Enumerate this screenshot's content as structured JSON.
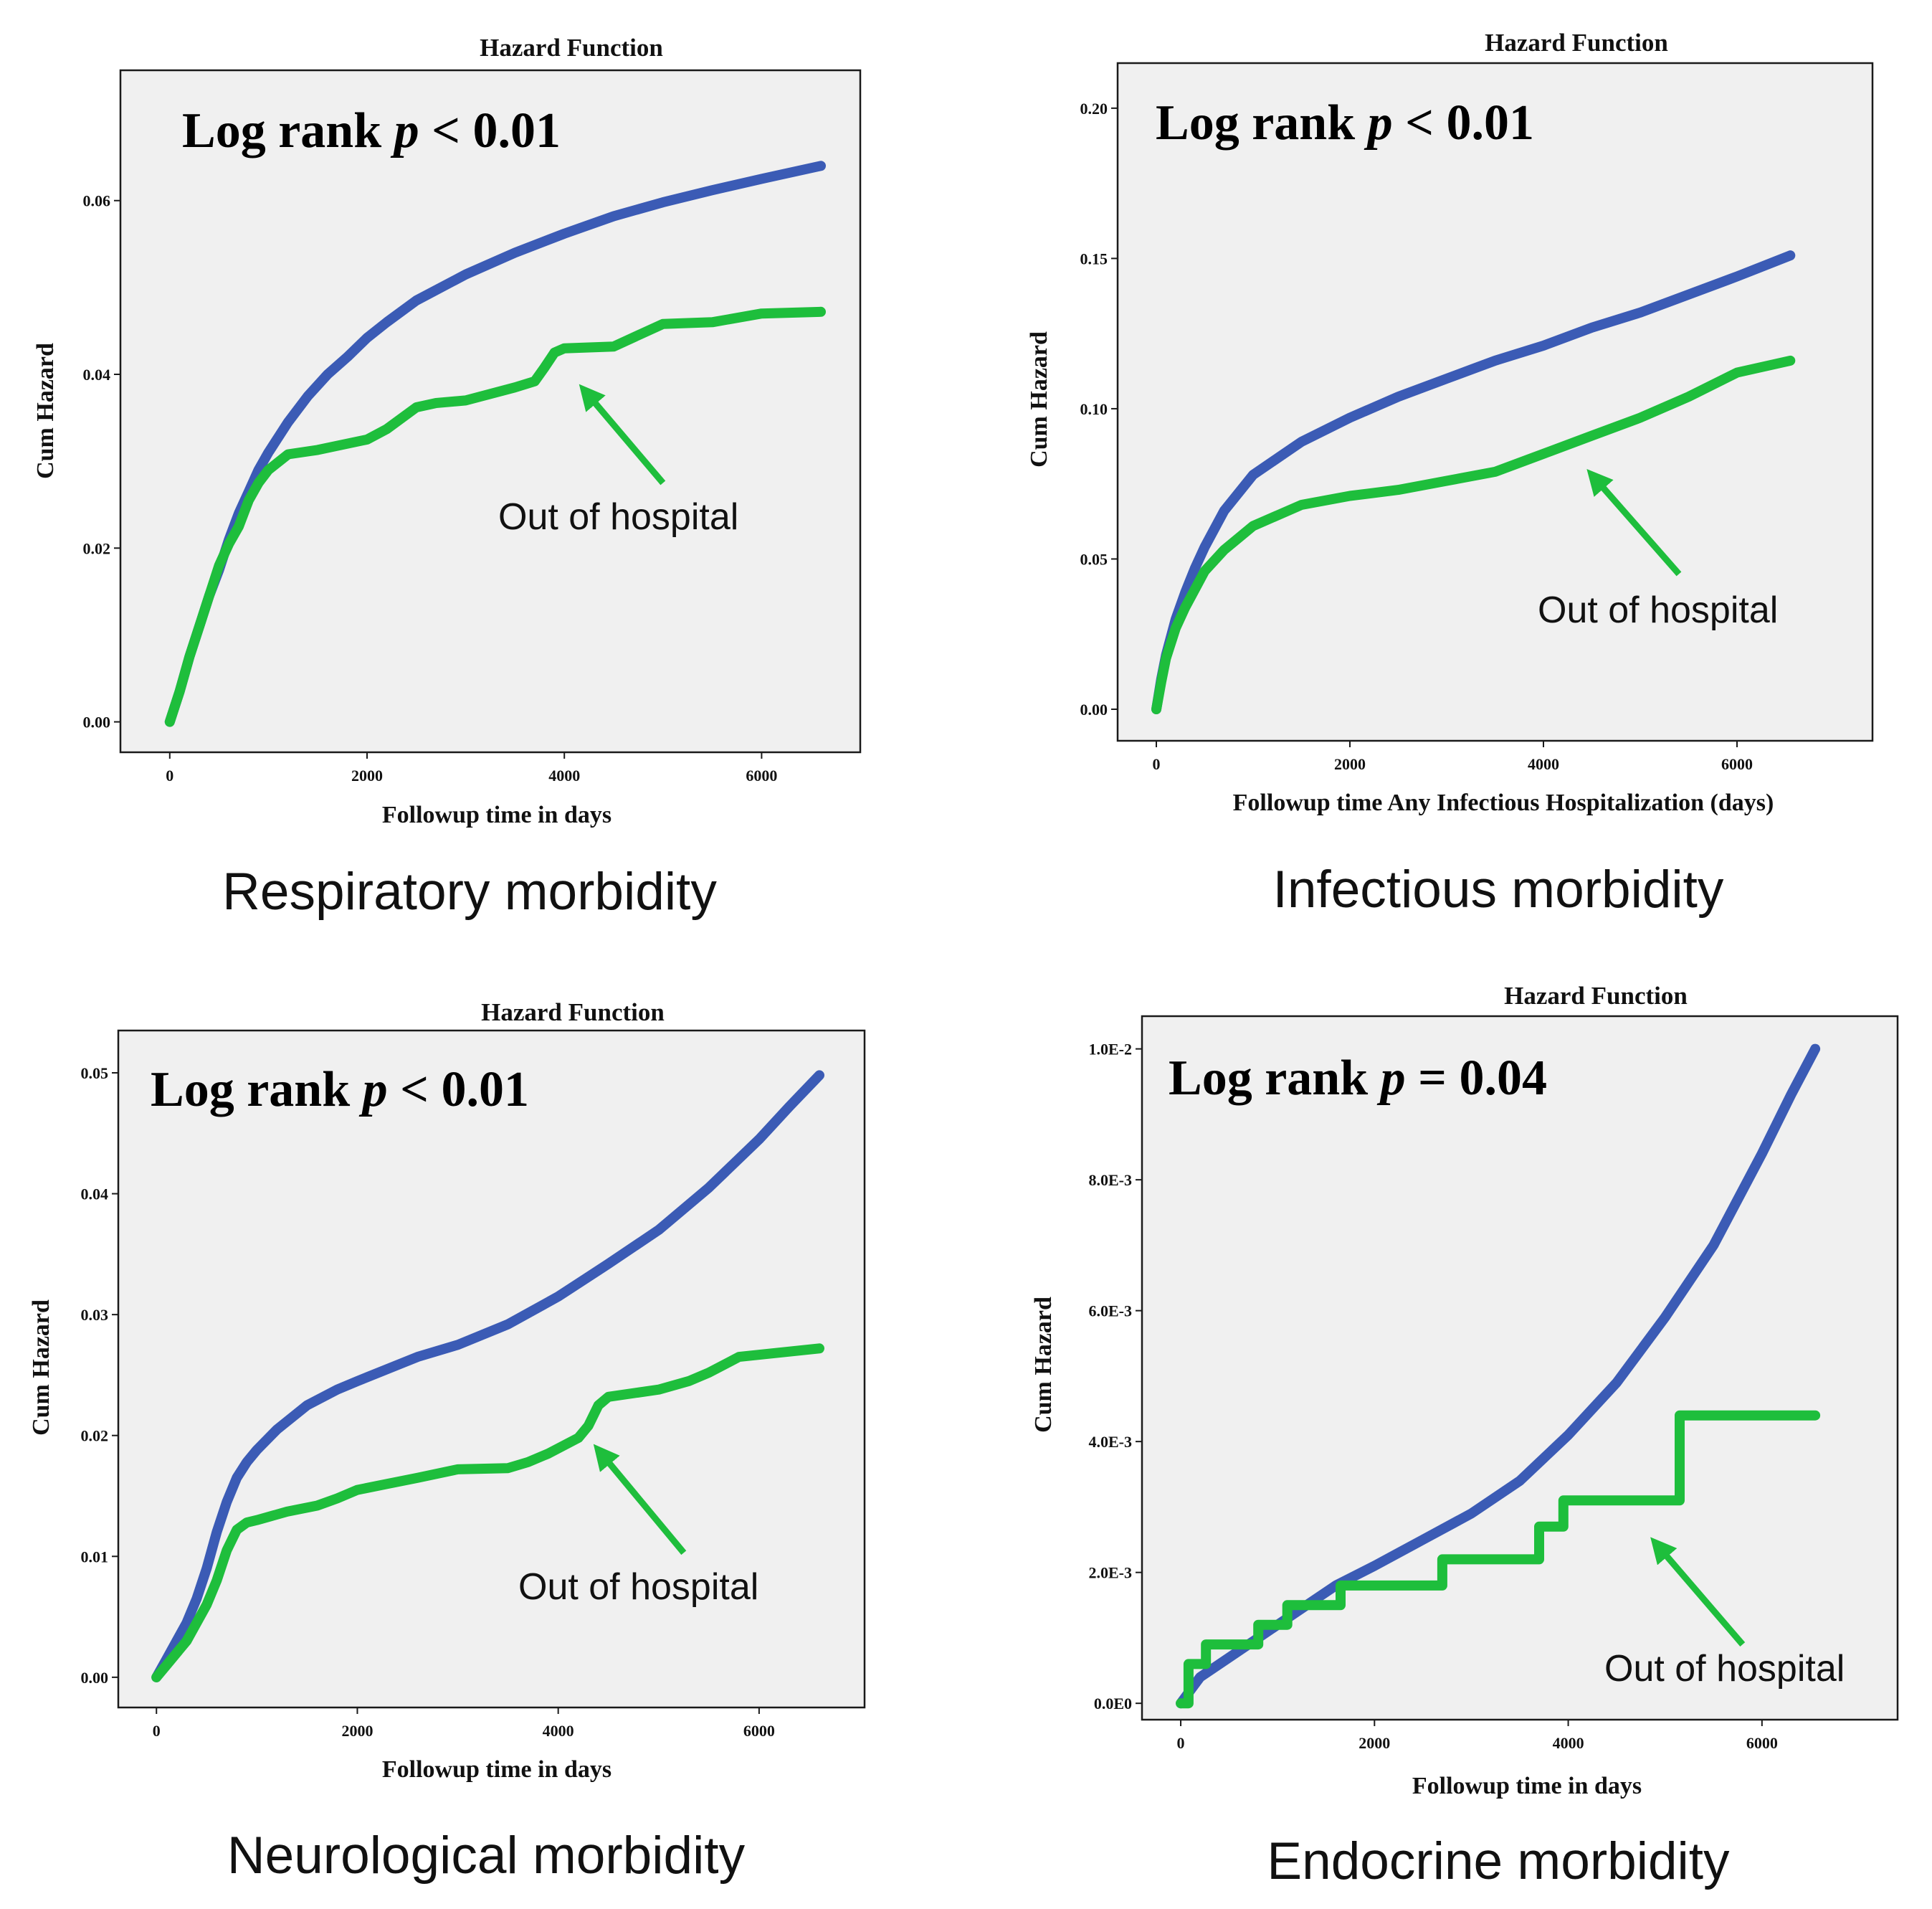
{
  "colors": {
    "background": "#ffffff",
    "plot_background": "#f0f0f0",
    "frame": "#1a1a1a",
    "blue_series": "#3b5bb5",
    "green_series": "#1ebe3c",
    "arrow": "#1ebe3c"
  },
  "chart_data": [
    {
      "type": "line",
      "title": "Hazard Function",
      "xlabel": "Followup time in days",
      "ylabel": "Cum Hazard",
      "xlim": [
        -500,
        7000
      ],
      "ylim": [
        -0.0035,
        0.075
      ],
      "x_ticks": [
        0,
        2000,
        4000,
        6000
      ],
      "x_tick_labels": [
        "0",
        "2000",
        "4000",
        "6000"
      ],
      "y_ticks": [
        0.0,
        0.02,
        0.04,
        0.06
      ],
      "y_tick_labels": [
        "0.00",
        "0.02",
        "0.04",
        "0.06"
      ],
      "log_rank": {
        "prefix": "Log rank ",
        "p": "p",
        "rest": " < 0.01"
      },
      "annotation": {
        "text": "Out of hospital",
        "target_x": 4200,
        "target_y": 0.0382,
        "tail_x": 5000,
        "tail_y": 0.0275
      },
      "caption": "Respiratory morbidity",
      "series": [
        {
          "name": "blue",
          "color": "#3b5bb5",
          "x": [
            0,
            100,
            200,
            300,
            400,
            500,
            600,
            700,
            800,
            900,
            1000,
            1200,
            1400,
            1600,
            1800,
            2000,
            2200,
            2500,
            3000,
            3500,
            4000,
            4500,
            5000,
            5500,
            6000,
            6600
          ],
          "y": [
            0,
            0.0035,
            0.0075,
            0.011,
            0.0145,
            0.0175,
            0.021,
            0.024,
            0.0265,
            0.029,
            0.031,
            0.0345,
            0.0375,
            0.04,
            0.042,
            0.0442,
            0.046,
            0.0485,
            0.0515,
            0.054,
            0.0562,
            0.0582,
            0.0598,
            0.0612,
            0.0625,
            0.064
          ]
        },
        {
          "name": "green",
          "color": "#1ebe3c",
          "x": [
            0,
            100,
            200,
            300,
            400,
            500,
            600,
            700,
            800,
            900,
            1000,
            1200,
            1500,
            2000,
            2200,
            2500,
            2700,
            3000,
            3500,
            3700,
            3800,
            3900,
            4000,
            4500,
            5000,
            5500,
            6000,
            6600
          ],
          "y": [
            0,
            0.0035,
            0.0075,
            0.011,
            0.0145,
            0.018,
            0.0205,
            0.0225,
            0.0255,
            0.0275,
            0.029,
            0.0308,
            0.0313,
            0.0325,
            0.0337,
            0.0362,
            0.0367,
            0.037,
            0.0385,
            0.0392,
            0.0408,
            0.0425,
            0.043,
            0.0432,
            0.0458,
            0.046,
            0.047,
            0.0472
          ]
        }
      ]
    },
    {
      "type": "line",
      "title": "Hazard Function",
      "xlabel": "Followup time Any Infectious Hospitalization (days)",
      "ylabel": "Cum Hazard",
      "xlim": [
        -400,
        7400
      ],
      "ylim": [
        -0.0105,
        0.215
      ],
      "x_ticks": [
        0,
        2000,
        4000,
        6000
      ],
      "x_tick_labels": [
        "0",
        "2000",
        "4000",
        "6000"
      ],
      "y_ticks": [
        0.0,
        0.05,
        0.1,
        0.15,
        0.2
      ],
      "y_tick_labels": [
        "0.00",
        "0.05",
        "0.10",
        "0.15",
        "0.20"
      ],
      "log_rank": {
        "prefix": "Log rank ",
        "p": "p",
        "rest": " < 0.01"
      },
      "annotation": {
        "text": "Out of hospital",
        "target_x": 4500,
        "target_y": 0.078,
        "tail_x": 5400,
        "tail_y": 0.045
      },
      "caption": "Infectious morbidity",
      "series": [
        {
          "name": "blue",
          "color": "#3b5bb5",
          "x": [
            0,
            50,
            100,
            200,
            300,
            400,
            500,
            700,
            1000,
            1500,
            2000,
            2500,
            3000,
            3500,
            4000,
            4500,
            5000,
            5500,
            6000,
            6550
          ],
          "y": [
            0,
            0.01,
            0.018,
            0.03,
            0.039,
            0.047,
            0.054,
            0.066,
            0.078,
            0.089,
            0.097,
            0.104,
            0.11,
            0.116,
            0.121,
            0.127,
            0.132,
            0.138,
            0.144,
            0.151
          ]
        },
        {
          "name": "green",
          "color": "#1ebe3c",
          "x": [
            0,
            50,
            100,
            200,
            300,
            400,
            500,
            700,
            1000,
            1500,
            2000,
            2500,
            3000,
            3500,
            4000,
            4500,
            5000,
            5500,
            6000,
            6550
          ],
          "y": [
            0,
            0.009,
            0.017,
            0.027,
            0.034,
            0.04,
            0.046,
            0.053,
            0.061,
            0.068,
            0.071,
            0.073,
            0.076,
            0.079,
            0.085,
            0.091,
            0.097,
            0.104,
            0.112,
            0.116
          ]
        }
      ]
    },
    {
      "type": "line",
      "title": "Hazard Function",
      "xlabel": "Followup time in days",
      "ylabel": "Cum Hazard",
      "xlim": [
        -380,
        7050
      ],
      "ylim": [
        -0.0025,
        0.0535
      ],
      "x_ticks": [
        0,
        2000,
        4000,
        6000
      ],
      "x_tick_labels": [
        "0",
        "2000",
        "4000",
        "6000"
      ],
      "y_ticks": [
        0.0,
        0.01,
        0.02,
        0.03,
        0.04,
        0.05
      ],
      "y_tick_labels": [
        "0.00",
        "0.01",
        "0.02",
        "0.03",
        "0.04",
        "0.05"
      ],
      "log_rank": {
        "prefix": "Log rank ",
        "p": "p",
        "rest": " < 0.01"
      },
      "annotation": {
        "text": "Out of hospital",
        "target_x": 4400,
        "target_y": 0.0188,
        "tail_x": 5250,
        "tail_y": 0.0103
      },
      "caption": "Neurological morbidity",
      "series": [
        {
          "name": "blue",
          "color": "#3b5bb5",
          "x": [
            0,
            100,
            200,
            300,
            400,
            500,
            600,
            700,
            800,
            900,
            1000,
            1200,
            1500,
            1800,
            2000,
            2300,
            2600,
            3000,
            3500,
            4000,
            4500,
            5000,
            5500,
            6000,
            6300,
            6600
          ],
          "y": [
            0,
            0.0015,
            0.003,
            0.0045,
            0.0065,
            0.009,
            0.012,
            0.0145,
            0.0165,
            0.0178,
            0.0188,
            0.0205,
            0.0225,
            0.0238,
            0.0245,
            0.0255,
            0.0265,
            0.0275,
            0.0292,
            0.0315,
            0.0342,
            0.037,
            0.0405,
            0.0445,
            0.0472,
            0.0498
          ]
        },
        {
          "name": "green",
          "color": "#1ebe3c",
          "x": [
            0,
            100,
            200,
            300,
            400,
            500,
            600,
            700,
            800,
            900,
            1000,
            1300,
            1600,
            1800,
            2000,
            2300,
            2600,
            3000,
            3500,
            3700,
            3900,
            4200,
            4300,
            4400,
            4500,
            5000,
            5300,
            5500,
            5800,
            6600
          ],
          "y": [
            0,
            0.001,
            0.002,
            0.003,
            0.0045,
            0.006,
            0.008,
            0.0105,
            0.0122,
            0.0128,
            0.013,
            0.0137,
            0.0142,
            0.0148,
            0.0155,
            0.016,
            0.0165,
            0.0172,
            0.0173,
            0.0178,
            0.0185,
            0.0198,
            0.0208,
            0.0225,
            0.0232,
            0.0238,
            0.0245,
            0.0252,
            0.0265,
            0.0272
          ]
        }
      ]
    },
    {
      "type": "line",
      "title": "Hazard Function",
      "xlabel": "Followup time in days",
      "ylabel": "Cum Hazard",
      "xlim": [
        -400,
        7400
      ],
      "ylim": [
        -0.00025,
        0.0105
      ],
      "x_ticks": [
        0,
        2000,
        4000,
        6000
      ],
      "x_tick_labels": [
        "0",
        "2000",
        "4000",
        "6000"
      ],
      "y_ticks": [
        0.0,
        0.002,
        0.004,
        0.006,
        0.008,
        0.01
      ],
      "y_tick_labels": [
        "0.0E0",
        "2.0E-3",
        "4.0E-3",
        "6.0E-3",
        "8.0E-3",
        "1.0E-2"
      ],
      "log_rank": {
        "prefix": "Log rank ",
        "p": "p",
        "rest": " = 0.04"
      },
      "annotation": {
        "text": "Out of hospital",
        "target_x": 4900,
        "target_y": 0.00245,
        "tail_x": 5800,
        "tail_y": 0.0009
      },
      "caption": "Endocrine morbidity",
      "series": [
        {
          "name": "blue",
          "color": "#3b5bb5",
          "x": [
            0,
            100,
            200,
            300,
            500,
            700,
            1000,
            1300,
            1600,
            2000,
            2500,
            3000,
            3500,
            4000,
            4500,
            5000,
            5500,
            6000,
            6300,
            6550
          ],
          "y": [
            0,
            0.0002,
            0.0004,
            0.0005,
            0.0007,
            0.0009,
            0.0012,
            0.0015,
            0.0018,
            0.0021,
            0.0025,
            0.0029,
            0.0034,
            0.0041,
            0.0049,
            0.0059,
            0.007,
            0.0084,
            0.0093,
            0.01
          ]
        },
        {
          "name": "green",
          "color": "#1ebe3c",
          "x": [
            0,
            80,
            80,
            260,
            260,
            800,
            800,
            1100,
            1100,
            1650,
            1650,
            2700,
            2700,
            3700,
            3700,
            3950,
            3950,
            5150,
            5150,
            6550
          ],
          "y": [
            0,
            0,
            0.0006,
            0.0006,
            0.0009,
            0.0009,
            0.0012,
            0.0012,
            0.0015,
            0.0015,
            0.0018,
            0.0018,
            0.0022,
            0.0022,
            0.0027,
            0.0027,
            0.0031,
            0.0031,
            0.0044,
            0.0044
          ]
        }
      ]
    }
  ]
}
